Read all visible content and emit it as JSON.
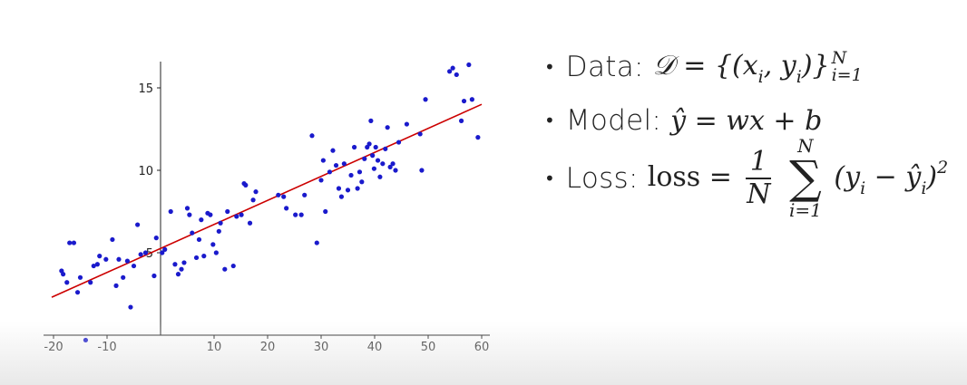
{
  "chart_data": {
    "type": "scatter",
    "title": "",
    "xlabel": "",
    "ylabel": "",
    "xlim": [
      -22,
      62
    ],
    "ylim": [
      -0.5,
      17
    ],
    "x_ticks": [
      -20,
      -10,
      10,
      20,
      30,
      40,
      50,
      60
    ],
    "y_ticks": [
      5,
      10,
      15
    ],
    "x_tick_labels": [
      "-20",
      "-10",
      "10",
      "20",
      "30",
      "40",
      "50",
      "60"
    ],
    "y_tick_labels": [
      "5",
      "10",
      "15"
    ],
    "grid": false,
    "point_color": "#1a1acc",
    "line_color": "#cc0000",
    "points": [
      [
        -18.5,
        3.9
      ],
      [
        -18.2,
        3.7
      ],
      [
        -17,
        5.6
      ],
      [
        -16.2,
        5.6
      ],
      [
        -17.5,
        3.2
      ],
      [
        -15.5,
        2.6
      ],
      [
        -15,
        3.5
      ],
      [
        -14,
        -0.3
      ],
      [
        -13.1,
        3.2
      ],
      [
        -12.5,
        4.2
      ],
      [
        -11.8,
        4.3
      ],
      [
        -11.4,
        4.8
      ],
      [
        -10.2,
        4.6
      ],
      [
        -9,
        5.8
      ],
      [
        -8.3,
        3.0
      ],
      [
        -7.8,
        4.6
      ],
      [
        -7,
        3.5
      ],
      [
        -6.2,
        4.5
      ],
      [
        -5.6,
        1.7
      ],
      [
        -5,
        4.2
      ],
      [
        -4.3,
        6.7
      ],
      [
        -3.7,
        4.9
      ],
      [
        -2.8,
        5.0
      ],
      [
        -1.2,
        3.6
      ],
      [
        -0.8,
        5.9
      ],
      [
        0.3,
        5.0
      ],
      [
        0.8,
        5.2
      ],
      [
        1.9,
        7.5
      ],
      [
        2.7,
        4.3
      ],
      [
        3.3,
        3.7
      ],
      [
        3.9,
        4.0
      ],
      [
        4.4,
        4.4
      ],
      [
        5.0,
        7.7
      ],
      [
        5.4,
        7.3
      ],
      [
        5.9,
        6.2
      ],
      [
        6.7,
        4.7
      ],
      [
        7.2,
        5.8
      ],
      [
        7.6,
        7.0
      ],
      [
        8.1,
        4.8
      ],
      [
        8.8,
        7.4
      ],
      [
        9.3,
        7.3
      ],
      [
        9.8,
        5.5
      ],
      [
        10.4,
        5.0
      ],
      [
        10.9,
        6.3
      ],
      [
        11.2,
        6.8
      ],
      [
        12.0,
        4.0
      ],
      [
        12.5,
        7.5
      ],
      [
        13.6,
        4.2
      ],
      [
        14.2,
        7.2
      ],
      [
        15.1,
        7.3
      ],
      [
        15.6,
        9.2
      ],
      [
        15.9,
        9.1
      ],
      [
        16.7,
        6.8
      ],
      [
        17.3,
        8.2
      ],
      [
        17.8,
        8.7
      ],
      [
        22.0,
        8.5
      ],
      [
        23.0,
        8.4
      ],
      [
        23.5,
        7.7
      ],
      [
        25.2,
        7.3
      ],
      [
        26.3,
        7.3
      ],
      [
        26.9,
        8.5
      ],
      [
        28.3,
        12.1
      ],
      [
        29.2,
        5.6
      ],
      [
        30.0,
        9.4
      ],
      [
        30.4,
        10.6
      ],
      [
        30.8,
        7.5
      ],
      [
        31.6,
        9.9
      ],
      [
        32.2,
        11.2
      ],
      [
        32.8,
        10.3
      ],
      [
        33.3,
        8.9
      ],
      [
        33.8,
        8.4
      ],
      [
        34.3,
        10.4
      ],
      [
        35.0,
        8.8
      ],
      [
        35.6,
        9.7
      ],
      [
        36.2,
        11.4
      ],
      [
        36.8,
        8.9
      ],
      [
        37.2,
        9.9
      ],
      [
        37.6,
        9.3
      ],
      [
        38.1,
        10.7
      ],
      [
        38.6,
        11.4
      ],
      [
        39.0,
        11.6
      ],
      [
        39.3,
        13.0
      ],
      [
        39.6,
        10.9
      ],
      [
        39.9,
        10.1
      ],
      [
        40.2,
        11.4
      ],
      [
        40.6,
        10.6
      ],
      [
        41.0,
        9.6
      ],
      [
        41.5,
        10.4
      ],
      [
        42.0,
        11.3
      ],
      [
        42.4,
        12.6
      ],
      [
        42.9,
        10.2
      ],
      [
        43.4,
        10.4
      ],
      [
        43.9,
        10.0
      ],
      [
        44.5,
        11.7
      ],
      [
        46.0,
        12.8
      ],
      [
        48.5,
        12.2
      ],
      [
        48.8,
        10.0
      ],
      [
        49.5,
        14.3
      ],
      [
        54.0,
        16.0
      ],
      [
        54.6,
        16.2
      ],
      [
        55.3,
        15.8
      ],
      [
        56.2,
        13.0
      ],
      [
        56.7,
        14.2
      ],
      [
        57.6,
        16.4
      ],
      [
        58.2,
        14.3
      ],
      [
        59.3,
        12.0
      ]
    ],
    "fit_line": {
      "x": [
        -20,
        60
      ],
      "y": [
        2.3,
        14.0
      ]
    }
  },
  "bullets": [
    {
      "label": "Data:",
      "math": "𝒟 = {(x<sub>i</sub>, y<sub>i</sub>)}<sup>N</sup><sub>i=1</sub>"
    },
    {
      "label": "Model:",
      "math": "ŷ = wx + b"
    },
    {
      "label": "Loss:",
      "math": "loss = 1/N Σ_{i=1}^{N} (y_i − ŷ_i)^2"
    }
  ],
  "bullet_text": {
    "data_label": "Data:",
    "model_label": "Model:",
    "loss_label": "Loss:",
    "data_math_main": "𝒟 = {(x",
    "data_sub_i1": "i",
    "data_mid": ", y",
    "data_sub_i2": "i",
    "data_close": ")}",
    "data_sup_N": "N",
    "data_sub_range": "i=1",
    "model_math": "ŷ = wx + b",
    "loss_word": "loss =",
    "loss_num": "1",
    "loss_den": "N",
    "loss_sum_top": "N",
    "loss_sum_sym": "∑",
    "loss_sum_bot": "i=1",
    "loss_term_open": "(y",
    "loss_sub_i1": "i",
    "loss_term_mid": " − ŷ",
    "loss_sub_i2": "i",
    "loss_term_close": ")",
    "loss_sup_2": "2",
    "bullet_glyph": "•"
  }
}
